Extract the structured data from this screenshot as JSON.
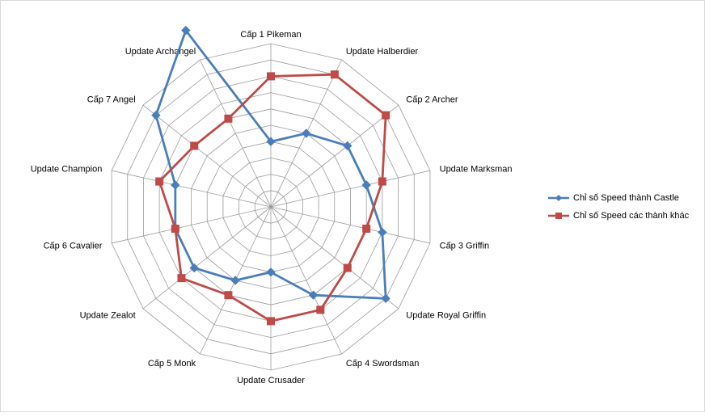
{
  "chart_data": {
    "type": "radar",
    "categories": [
      "Cấp 1 Pikeman",
      "Update Halberdier",
      "Cấp 2 Archer",
      "Update Marksman",
      "Cấp 3 Griffin",
      "Update Royal Griffin",
      "Cấp 4 Swordsman",
      "Update Crusader",
      "Cấp 5 Monk",
      "Update Zealot",
      "Cấp 6 Cavalier",
      "Update Champion",
      "Cấp 7 Angel",
      "Update Archangel"
    ],
    "series": [
      {
        "name": "Chỉ số Speed  thành Castle",
        "color": "#4a7ebb",
        "marker": "diamond",
        "values": [
          4,
          5,
          6,
          6,
          7,
          9,
          6,
          4,
          5,
          6,
          6,
          6,
          9,
          12
        ]
      },
      {
        "name": "Chỉ số Speed  các thành khác",
        "color": "#be4b48",
        "marker": "square",
        "values": [
          8,
          9,
          9,
          7,
          6,
          6,
          7,
          7,
          6,
          7,
          6,
          7,
          6,
          6
        ]
      }
    ],
    "rlim": [
      0,
      10
    ],
    "rings": 10,
    "grid": true,
    "legend_position": "right"
  }
}
